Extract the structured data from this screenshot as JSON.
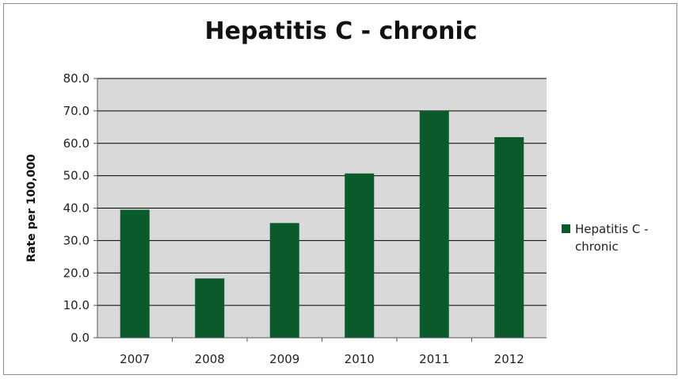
{
  "chart_data": {
    "type": "bar",
    "title": "Hepatitis C - chronic",
    "xlabel": "",
    "ylabel": "Rate per 100,000",
    "categories": [
      "2007",
      "2008",
      "2009",
      "2010",
      "2011",
      "2012"
    ],
    "series": [
      {
        "name": "Hepatitis C - chronic",
        "values": [
          39.5,
          18.3,
          35.4,
          50.7,
          70.0,
          61.9
        ]
      }
    ],
    "ylim": [
      0,
      80
    ],
    "yticks": [
      "0.0",
      "10.0",
      "20.0",
      "30.0",
      "40.0",
      "50.0",
      "60.0",
      "70.0",
      "80.0"
    ],
    "grid": true,
    "legend_position": "right",
    "colors": {
      "bar": "#0b5a2c",
      "plot_background": "#d9d9d9",
      "gridline": "#000000"
    }
  }
}
